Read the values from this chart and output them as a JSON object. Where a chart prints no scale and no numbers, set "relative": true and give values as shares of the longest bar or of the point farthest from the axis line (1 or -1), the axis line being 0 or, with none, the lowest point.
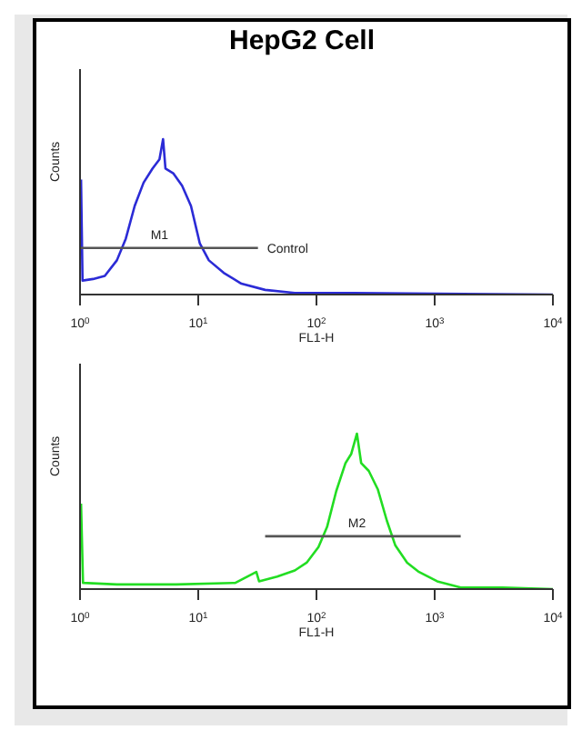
{
  "chart_data": [
    {
      "type": "line",
      "title": "HepG2  Cell",
      "xlabel": "FL1-H",
      "ylabel": "Counts",
      "relative": true,
      "log": "x",
      "legend": false,
      "grid": false,
      "marker": "none",
      "line_style": "solid",
      "xlim": [
        1,
        10000
      ],
      "xticks": [
        {
          "value": 1,
          "label": "10$^{0}$"
        },
        {
          "value": 10,
          "label": "10$^{1}$"
        },
        {
          "value": 100,
          "label": "10$^{2}$"
        },
        {
          "value": 1000,
          "label": "10$^{3}$"
        },
        {
          "value": 10000,
          "label": "10$^{4}$"
        }
      ],
      "series": [
        {
          "color": "#2b2bd6",
          "x": [
            1.02,
            1.05,
            1.29,
            1.62,
            2.05,
            2.44,
            2.9,
            3.45,
            4.1,
            4.7,
            5.04,
            5.28,
            6.14,
            7.3,
            8.68,
            10.3,
            12.3,
            16.4,
            23.2,
            36.8,
            65.6,
            208,
            10000
          ],
          "values": [
            0.74,
            0.09,
            0.1,
            0.12,
            0.22,
            0.36,
            0.57,
            0.72,
            0.81,
            0.87,
            1,
            0.81,
            0.78,
            0.7,
            0.57,
            0.33,
            0.22,
            0.14,
            0.07,
            0.03,
            0.01,
            0.01,
            0
          ]
        },
        {
          "type": "line",
          "color": "#555555",
          "x": [
            1,
            32
          ],
          "values": [
            0.3,
            0.3
          ]
        }
      ],
      "annotations": [
        {
          "text": "M1",
          "x": 4.7,
          "y": 0.3
        },
        {
          "text": "Control",
          "x": 32,
          "y": 0.3
        }
      ]
    },
    {
      "type": "line",
      "xlabel": "FL1-H",
      "ylabel": "Counts",
      "relative": true,
      "log": "x",
      "legend": false,
      "grid": false,
      "marker": "none",
      "line_style": "solid",
      "xlim": [
        1,
        10000
      ],
      "xticks": [
        {
          "value": 1,
          "label": "10$^{0}$"
        },
        {
          "value": 10,
          "label": "10$^{1}$"
        },
        {
          "value": 100,
          "label": "10$^{2}$"
        },
        {
          "value": 1000,
          "label": "10$^{3}$"
        },
        {
          "value": 10000,
          "label": "10$^{4}$"
        }
      ],
      "series": [
        {
          "color": "#22dd22",
          "x": [
            1.02,
            1.06,
            2.05,
            6.52,
            20.6,
            31,
            32.7,
            46.5,
            65.6,
            82.6,
            104,
            123,
            147,
            176,
            197,
            220,
            239,
            277,
            331,
            394,
            465,
            585,
            737,
            1050,
            1660,
            3750,
            10000
          ],
          "values": [
            0.55,
            0.04,
            0.03,
            0.03,
            0.04,
            0.11,
            0.05,
            0.08,
            0.12,
            0.17,
            0.27,
            0.4,
            0.63,
            0.81,
            0.87,
            1,
            0.81,
            0.76,
            0.64,
            0.44,
            0.28,
            0.17,
            0.11,
            0.05,
            0.01,
            0.01,
            0
          ]
        },
        {
          "type": "line",
          "color": "#555555",
          "x": [
            36.8,
            1660
          ],
          "values": [
            0.34,
            0.34
          ]
        }
      ],
      "annotations": [
        {
          "text": "M2",
          "x": 220,
          "y": 0.34
        }
      ]
    }
  ]
}
